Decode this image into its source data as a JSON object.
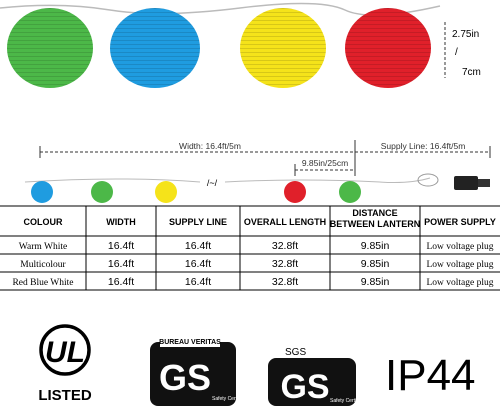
{
  "dimensions": {
    "diameter_in": "2.75in",
    "separator": "/",
    "diameter_cm": "7cm",
    "width": "Width: 16.4ft/5m",
    "supply_line": "Supply Line: 16.4ft/5m",
    "spacing": "9.85in/25cm",
    "break": "/~/"
  },
  "table": {
    "header": [
      "COLOUR",
      "WIDTH",
      "SUPPLY LINE",
      "OVERALL LENGTH",
      "DISTANCE BETWEEN LANTERN",
      "POWER SUPPLY"
    ],
    "rows": [
      [
        "Warm White",
        "16.4ft",
        "16.4ft",
        "32.8ft",
        "9.85in",
        "Low voltage plug"
      ],
      [
        "Multicolour",
        "16.4ft",
        "16.4ft",
        "32.8ft",
        "9.85in",
        "Low voltage plug"
      ],
      [
        "Red Blue White",
        "16.4ft",
        "16.4ft",
        "32.8ft",
        "9.85in",
        "Low voltage plug"
      ]
    ]
  },
  "certifications": {
    "ul": "UL",
    "ul_listed": "LISTED",
    "bv_name": "BUREAU VERITAS",
    "bv_mark": "GS",
    "bv_caption": "Safety Certification",
    "sgs_name": "SGS",
    "sgs_mark": "GS",
    "sgs_caption": "Safety Certification",
    "ip": "IP44"
  }
}
